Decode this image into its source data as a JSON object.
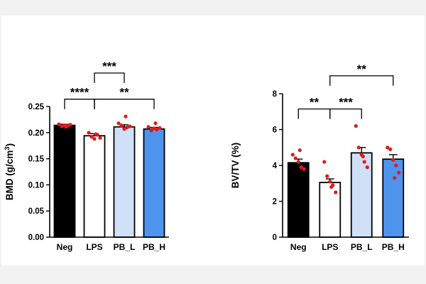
{
  "colors": {
    "page_background": "#f2f2f2",
    "panel_background": "#ffffff",
    "point_color": "#e01b1b",
    "axis_color": "#000000"
  },
  "chart_data": [
    {
      "type": "bar",
      "title": "",
      "xlabel": "",
      "ylabel": "BMD (g/cm",
      "ylabel_superscript": "3",
      "ylabel_close": ")",
      "categories": [
        "Neg",
        "LPS",
        "PB_L",
        "PB_H"
      ],
      "bar_colors": [
        "#000000",
        "#ffffff",
        "#cfe0f7",
        "#4f94ec"
      ],
      "values": [
        0.214,
        0.194,
        0.211,
        0.207
      ],
      "errors": [
        0.002,
        0.004,
        0.004,
        0.003
      ],
      "points": [
        [
          0.216,
          0.212,
          0.214,
          0.213,
          0.215,
          0.211
        ],
        [
          0.2,
          0.192,
          0.188,
          0.196,
          0.19,
          0.197
        ],
        [
          0.218,
          0.214,
          0.207,
          0.21,
          0.212,
          0.231
        ],
        [
          0.211,
          0.204,
          0.208,
          0.206,
          0.209,
          0.218
        ]
      ],
      "ylim": [
        0,
        0.25
      ],
      "yticks": [
        0,
        0.05,
        0.1,
        0.15,
        0.2,
        0.25
      ],
      "ytick_labels": [
        "0.00",
        "0.05",
        "0.10",
        "0.15",
        "0.20",
        "0.25"
      ],
      "significance": [
        {
          "from": 0,
          "to": 1,
          "label": "****",
          "y": 0.264
        },
        {
          "from": 1,
          "to": 3,
          "label": "**",
          "y": 0.264
        },
        {
          "from": 1,
          "to": 2,
          "label": "***",
          "y": 0.314
        }
      ]
    },
    {
      "type": "bar",
      "title": "",
      "xlabel": "",
      "ylabel": "BV/TV (%)",
      "ylabel_superscript": "",
      "ylabel_close": "",
      "categories": [
        "Neg",
        "LPS",
        "PB_L",
        "PB_H"
      ],
      "bar_colors": [
        "#000000",
        "#ffffff",
        "#cfe0f7",
        "#4f94ec"
      ],
      "values": [
        4.15,
        3.05,
        4.7,
        4.35
      ],
      "errors": [
        0.2,
        0.2,
        0.3,
        0.25
      ],
      "points": [
        [
          4.6,
          4.4,
          4.2,
          3.9,
          3.8,
          4.85
        ],
        [
          4.2,
          3.4,
          3.1,
          2.9,
          2.5,
          2.8
        ],
        [
          6.2,
          5.0,
          4.6,
          4.2,
          3.9,
          4.5
        ],
        [
          5.0,
          4.9,
          4.3,
          4.0,
          3.6,
          3.3
        ]
      ],
      "ylim": [
        0,
        8
      ],
      "yticks": [
        0,
        2,
        4,
        6,
        8
      ],
      "ytick_labels": [
        "0",
        "2",
        "4",
        "6",
        "8"
      ],
      "significance": [
        {
          "from": 0,
          "to": 1,
          "label": "**",
          "y": 7.15
        },
        {
          "from": 1,
          "to": 2,
          "label": "***",
          "y": 7.15
        },
        {
          "from": 1,
          "to": 3,
          "label": "**",
          "y": 9.0
        }
      ]
    }
  ]
}
